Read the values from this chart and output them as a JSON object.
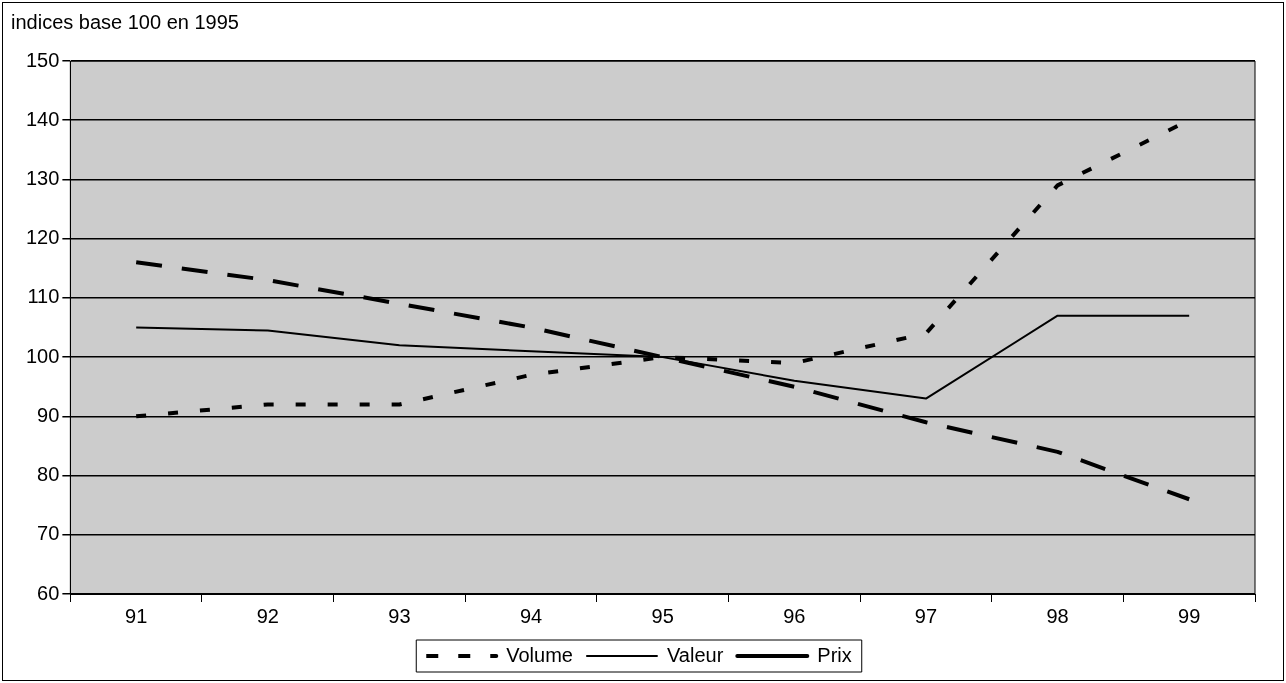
{
  "chart_data": {
    "type": "line",
    "ylabel": "indices base 100 en 1995",
    "categories": [
      "91",
      "92",
      "93",
      "94",
      "95",
      "96",
      "97",
      "98",
      "99"
    ],
    "series": [
      {
        "name": "Volume",
        "color": "#000000",
        "line_style": "dotted",
        "values": [
          90,
          92,
          92,
          97,
          100,
          99,
          104,
          129,
          140
        ]
      },
      {
        "name": "Valeur",
        "color": "#000000",
        "line_style": "solid",
        "values": [
          105,
          104.5,
          102,
          101,
          100,
          96,
          93,
          107,
          107
        ]
      },
      {
        "name": "Prix",
        "color": "#000000",
        "line_style": "dashed",
        "values": [
          116,
          113,
          109,
          105,
          100,
          95,
          89,
          84,
          76
        ]
      }
    ],
    "ylim": [
      60,
      150
    ],
    "yticks": [
      60,
      70,
      80,
      90,
      100,
      110,
      120,
      130,
      140,
      150
    ],
    "grid": "y",
    "legend": "bottom",
    "marker": "none"
  }
}
